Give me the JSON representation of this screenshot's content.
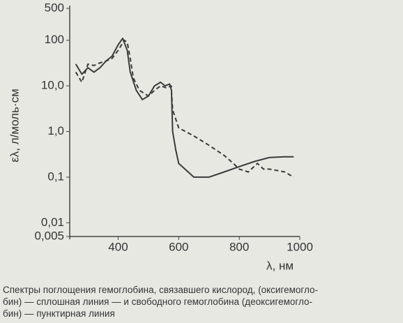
{
  "chart_data": {
    "type": "line",
    "ylabel": "ελ, л/моль·см",
    "xlabel": "λ, нм",
    "caption": [
      "Спектры поглощения гемоглобина, связавшего кислород, (оксигемогло-",
      "бин) — сплошная линия — и свободного гемоглобина (деоксигемогло-",
      "бин) — пунктирная линия"
    ],
    "yscale": "log",
    "xlim": [
      240,
      1000
    ],
    "xticks": [
      400,
      600,
      800,
      1000
    ],
    "ylim": [
      0.005,
      500
    ],
    "yticks": [
      {
        "value": 0.005,
        "label": "0,005"
      },
      {
        "value": 0.01,
        "label": "0,01"
      },
      {
        "value": 0.1,
        "label": "0,1"
      },
      {
        "value": 1,
        "label": "1,0"
      },
      {
        "value": 10,
        "label": "10,0"
      },
      100,
      500
    ],
    "series": [
      {
        "color": "#3a3a3a",
        "dashed": false,
        "x": [
          260,
          280,
          300,
          320,
          340,
          360,
          380,
          400,
          415,
          430,
          440,
          460,
          480,
          500,
          520,
          540,
          555,
          570,
          576,
          580,
          590,
          600,
          650,
          700,
          750,
          800,
          850,
          900,
          950,
          980
        ],
        "values": [
          30,
          18,
          25,
          20,
          25,
          35,
          45,
          80,
          110,
          60,
          20,
          8,
          5,
          6,
          10,
          12,
          10,
          11,
          8,
          1.0,
          0.4,
          0.2,
          0.1,
          0.1,
          0.13,
          0.17,
          0.22,
          0.27,
          0.28,
          0.28
        ]
      },
      {
        "color": "#3a3a3a",
        "dashed": true,
        "x": [
          260,
          280,
          300,
          320,
          340,
          360,
          380,
          400,
          420,
          430,
          440,
          450,
          470,
          500,
          520,
          540,
          560,
          575,
          580,
          600,
          650,
          700,
          750,
          780,
          800,
          830,
          860,
          880,
          900,
          950,
          980
        ],
        "values": [
          20,
          12,
          30,
          28,
          32,
          35,
          40,
          60,
          100,
          90,
          40,
          15,
          8,
          6,
          8,
          10,
          9,
          10,
          3,
          1.2,
          0.8,
          0.5,
          0.3,
          0.2,
          0.15,
          0.13,
          0.2,
          0.15,
          0.15,
          0.13,
          0.1
        ]
      }
    ]
  }
}
